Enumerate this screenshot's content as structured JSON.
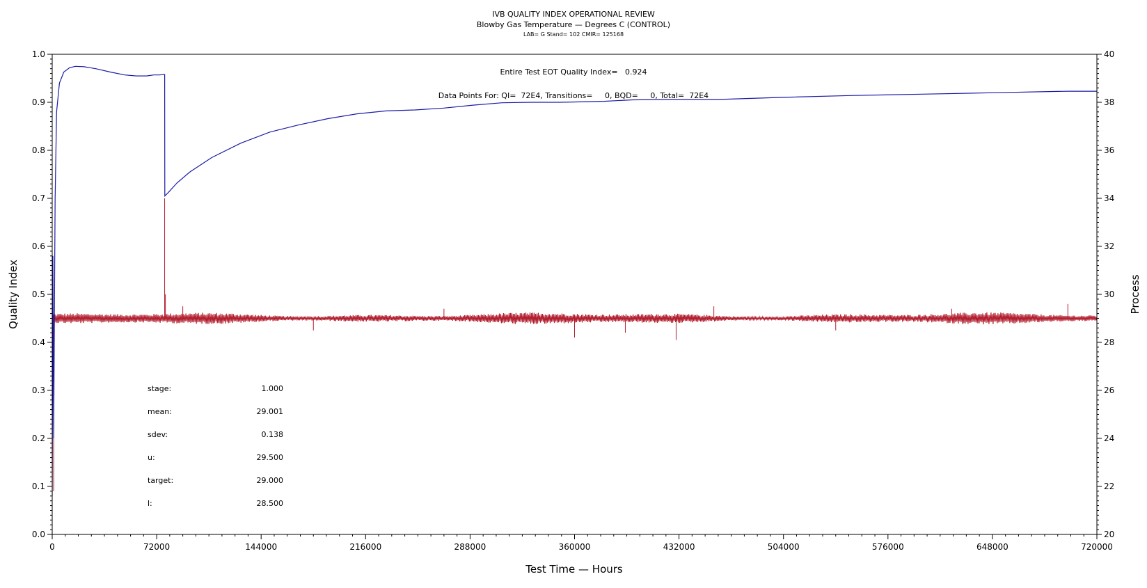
{
  "chart_data": {
    "type": "line",
    "title": "IVB QUALITY INDEX OPERATIONAL REVIEW",
    "subtitle": "Blowby Gas Temperature — Degrees C (CONTROL)",
    "subtitle2": "LAB= G Stand= 102 CMIR= 125168",
    "annotation_qi": "Entire Test EOT Quality Index=   0.924",
    "annotation_points": "Data Points For: QI=  72E4, Transitions=     0, BQD=     0, Total=  72E4",
    "xlabel": "Test Time — Hours",
    "ylabel_left": "Quality Index",
    "ylabel_right": "Process",
    "xlim": [
      0,
      720000
    ],
    "ylim_left": [
      0.0,
      1.0
    ],
    "ylim_right": [
      20,
      40
    ],
    "x_ticks": [
      "0",
      "72000",
      "144000",
      "216000",
      "288000",
      "360000",
      "432000",
      "504000",
      "576000",
      "648000",
      "720000"
    ],
    "y_left_ticks": [
      "0.0",
      "0.1",
      "0.2",
      "0.3",
      "0.4",
      "0.5",
      "0.6",
      "0.7",
      "0.8",
      "0.9",
      "1.0"
    ],
    "y_right_ticks": [
      "20",
      "22",
      "24",
      "26",
      "28",
      "30",
      "32",
      "34",
      "36",
      "38",
      "40"
    ],
    "stats": [
      {
        "label": "stage:",
        "value": "1.000"
      },
      {
        "label": "mean:",
        "value": "29.001"
      },
      {
        "label": "sdev:",
        "value": "0.138"
      },
      {
        "label": "u:",
        "value": "29.500"
      },
      {
        "label": "target:",
        "value": "29.000"
      },
      {
        "label": "l:",
        "value": "28.500"
      }
    ],
    "series": [
      {
        "axis": "left",
        "color": "#1a1aa6",
        "x": [
          0,
          500,
          1000,
          2000,
          3000,
          5000,
          8000,
          12000,
          16000,
          22000,
          30000,
          40000,
          50000,
          58000,
          65000,
          70000,
          74000,
          77500,
          77600,
          80000,
          86000,
          95000,
          110000,
          130000,
          150000,
          170000,
          190000,
          210000,
          230000,
          250000,
          270000,
          290000,
          310000,
          330000,
          350000,
          380000,
          400000,
          430000,
          460000,
          500000,
          550000,
          600000,
          650000,
          700000,
          720000
        ],
        "y": [
          0.08,
          0.58,
          0.2,
          0.7,
          0.88,
          0.94,
          0.963,
          0.972,
          0.975,
          0.974,
          0.97,
          0.963,
          0.957,
          0.955,
          0.955,
          0.957,
          0.957,
          0.958,
          0.705,
          0.712,
          0.732,
          0.755,
          0.785,
          0.815,
          0.838,
          0.853,
          0.866,
          0.876,
          0.882,
          0.884,
          0.888,
          0.894,
          0.899,
          0.9,
          0.9,
          0.902,
          0.905,
          0.906,
          0.906,
          0.91,
          0.914,
          0.917,
          0.92,
          0.923,
          0.923
        ]
      },
      {
        "axis": "right",
        "color": "#b21e2e",
        "center": 29.0,
        "band_halfwidth": 0.16,
        "spikes": [
          {
            "x": 1000,
            "y": 21.8
          },
          {
            "x": 77500,
            "y": 34.0
          },
          {
            "x": 78000,
            "y": 30.0
          },
          {
            "x": 90000,
            "y": 29.5
          },
          {
            "x": 180000,
            "y": 28.5
          },
          {
            "x": 270000,
            "y": 29.4
          },
          {
            "x": 360000,
            "y": 28.2
          },
          {
            "x": 395000,
            "y": 28.4
          },
          {
            "x": 430000,
            "y": 28.1
          },
          {
            "x": 456000,
            "y": 29.5
          },
          {
            "x": 540000,
            "y": 28.5
          },
          {
            "x": 620000,
            "y": 29.4
          },
          {
            "x": 700000,
            "y": 29.6
          }
        ]
      }
    ]
  }
}
